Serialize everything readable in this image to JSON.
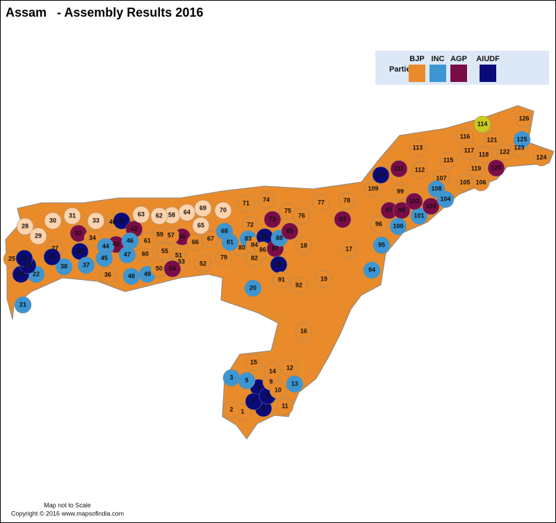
{
  "header": {
    "title": "Assam   - Assembly Results 2016"
  },
  "legend": {
    "label": "Parties",
    "parties": [
      {
        "name": "BJP",
        "color": "#e98b2a"
      },
      {
        "name": "INC",
        "color": "#3d96d2"
      },
      {
        "name": "AGP",
        "color": "#7a0c46"
      },
      {
        "name": "AIUDF",
        "color": "#0a0a78"
      }
    ]
  },
  "constituencies": [
    {
      "label": "1",
      "color": "#e98b2a"
    },
    {
      "label": "2",
      "color": "#e98b2a"
    },
    {
      "label": "3",
      "color": "#3d96d2"
    },
    {
      "label": "4",
      "color": "#0a0a78"
    },
    {
      "label": "5",
      "color": "#3d96d2"
    },
    {
      "label": "6",
      "color": "#0a0a78"
    },
    {
      "label": "7",
      "color": "#0a0a78"
    },
    {
      "label": "8",
      "color": "#0a0a78"
    },
    {
      "label": "9",
      "color": "#e98b2a"
    },
    {
      "label": "10",
      "color": "#e98b2a"
    },
    {
      "label": "11",
      "color": "#e98b2a"
    },
    {
      "label": "12",
      "color": "#e98b2a"
    },
    {
      "label": "13",
      "color": "#3d96d2"
    },
    {
      "label": "14",
      "color": "#e98b2a"
    },
    {
      "label": "15",
      "color": "#e98b2a"
    },
    {
      "label": "16",
      "color": "#e98b2a"
    },
    {
      "label": "17",
      "color": "#e98b2a"
    },
    {
      "label": "18",
      "color": "#e98b2a"
    },
    {
      "label": "19",
      "color": "#e98b2a"
    },
    {
      "label": "20",
      "color": "#3d96d2"
    },
    {
      "label": "21",
      "color": "#3d96d2"
    },
    {
      "label": "22",
      "color": "#3d96d2"
    },
    {
      "label": "23",
      "color": "#0a0a78"
    },
    {
      "label": "24",
      "color": "#0a0a78"
    },
    {
      "label": "25",
      "color": "#e98b2a"
    },
    {
      "label": "26",
      "color": "#0a0a78"
    },
    {
      "label": "27",
      "color": "#e98b2a"
    },
    {
      "label": "28",
      "color": "#fdd3ad"
    },
    {
      "label": "29",
      "color": "#fdd3ad"
    },
    {
      "label": "30",
      "color": "#fdd3ad"
    },
    {
      "label": "31",
      "color": "#fdd3ad"
    },
    {
      "label": "32",
      "color": "#7a0c46"
    },
    {
      "label": "33",
      "color": "#fdd3ad"
    },
    {
      "label": "34",
      "color": "#e98b2a"
    },
    {
      "label": "35",
      "color": "#0a0a78"
    },
    {
      "label": "36",
      "color": "#e98b2a"
    },
    {
      "label": "37",
      "color": "#3d96d2"
    },
    {
      "label": "38",
      "color": "#3d96d2"
    },
    {
      "label": "39",
      "color": "#0a0a78"
    },
    {
      "label": "40",
      "color": "#e98b2a"
    },
    {
      "label": "41",
      "color": "#0a0a78"
    },
    {
      "label": "42",
      "color": "#7a0c46"
    },
    {
      "label": "43",
      "color": "#7a0c46"
    },
    {
      "label": "44",
      "color": "#3d96d2"
    },
    {
      "label": "45",
      "color": "#3d96d2"
    },
    {
      "label": "46",
      "color": "#3d96d2"
    },
    {
      "label": "47",
      "color": "#3d96d2"
    },
    {
      "label": "48",
      "color": "#3d96d2"
    },
    {
      "label": "49",
      "color": "#3d96d2"
    },
    {
      "label": "50",
      "color": "#e98b2a"
    },
    {
      "label": "51",
      "color": "#e98b2a"
    },
    {
      "label": "52",
      "color": "#e98b2a"
    },
    {
      "label": "53",
      "color": "#e98b2a"
    },
    {
      "label": "54",
      "color": "#7a0c46"
    },
    {
      "label": "55",
      "color": "#e98b2a"
    },
    {
      "label": "56",
      "color": "#7a0c46"
    },
    {
      "label": "57",
      "color": "#e98b2a"
    },
    {
      "label": "58",
      "color": "#fdd3ad"
    },
    {
      "label": "59",
      "color": "#e98b2a"
    },
    {
      "label": "60",
      "color": "#e98b2a"
    },
    {
      "label": "61",
      "color": "#e98b2a"
    },
    {
      "label": "62",
      "color": "#fdd3ad"
    },
    {
      "label": "63",
      "color": "#fdd3ad"
    },
    {
      "label": "64",
      "color": "#fdd3ad"
    },
    {
      "label": "65",
      "color": "#fdd3ad"
    },
    {
      "label": "66",
      "color": "#e98b2a"
    },
    {
      "label": "67",
      "color": "#e98b2a"
    },
    {
      "label": "68",
      "color": "#3d96d2"
    },
    {
      "label": "69",
      "color": "#fdd3ad"
    },
    {
      "label": "70",
      "color": "#fdd3ad"
    },
    {
      "label": "71",
      "color": "#e98b2a"
    },
    {
      "label": "72",
      "color": "#e98b2a"
    },
    {
      "label": "73",
      "color": "#7a0c46"
    },
    {
      "label": "74",
      "color": "#e98b2a"
    },
    {
      "label": "75",
      "color": "#e98b2a"
    },
    {
      "label": "76",
      "color": "#e98b2a"
    },
    {
      "label": "77",
      "color": "#e98b2a"
    },
    {
      "label": "78",
      "color": "#e98b2a"
    },
    {
      "label": "79",
      "color": "#e98b2a"
    },
    {
      "label": "80",
      "color": "#e98b2a"
    },
    {
      "label": "81",
      "color": "#3d96d2"
    },
    {
      "label": "82",
      "color": "#e98b2a"
    },
    {
      "label": "83",
      "color": "#3d96d2"
    },
    {
      "label": "84",
      "color": "#e98b2a"
    },
    {
      "label": "85",
      "color": "#0a0a78"
    },
    {
      "label": "86",
      "color": "#e98b2a"
    },
    {
      "label": "87",
      "color": "#7a0c46"
    },
    {
      "label": "88",
      "color": "#3d96d2"
    },
    {
      "label": "89",
      "color": "#7a0c46"
    },
    {
      "label": "90",
      "color": "#0a0a78"
    },
    {
      "label": "91",
      "color": "#e98b2a"
    },
    {
      "label": "92",
      "color": "#e98b2a"
    },
    {
      "label": "93",
      "color": "#7a0c46"
    },
    {
      "label": "94",
      "color": "#3d96d2"
    },
    {
      "label": "95",
      "color": "#3d96d2"
    },
    {
      "label": "96",
      "color": "#e98b2a"
    },
    {
      "label": "97",
      "color": "#7a0c46"
    },
    {
      "label": "98",
      "color": "#7a0c46"
    },
    {
      "label": "99",
      "color": "#e98b2a"
    },
    {
      "label": "100",
      "color": "#3d96d2"
    },
    {
      "label": "101",
      "color": "#3d96d2"
    },
    {
      "label": "102",
      "color": "#7a0c46"
    },
    {
      "label": "103",
      "color": "#7a0c46"
    },
    {
      "label": "104",
      "color": "#3d96d2"
    },
    {
      "label": "105",
      "color": "#e98b2a"
    },
    {
      "label": "106",
      "color": "#e98b2a"
    },
    {
      "label": "107",
      "color": "#e98b2a"
    },
    {
      "label": "108",
      "color": "#3d96d2"
    },
    {
      "label": "109",
      "color": "#e98b2a"
    },
    {
      "label": "110",
      "color": "#0a0a78"
    },
    {
      "label": "111",
      "color": "#7a0c46"
    },
    {
      "label": "112",
      "color": "#e98b2a"
    },
    {
      "label": "113",
      "color": "#e98b2a"
    },
    {
      "label": "114",
      "color": "#c9cc1c"
    },
    {
      "label": "115",
      "color": "#e98b2a"
    },
    {
      "label": "116",
      "color": "#e98b2a"
    },
    {
      "label": "117",
      "color": "#e98b2a"
    },
    {
      "label": "118",
      "color": "#e98b2a"
    },
    {
      "label": "119",
      "color": "#e98b2a"
    },
    {
      "label": "120",
      "color": "#7a0c46"
    },
    {
      "label": "121",
      "color": "#e98b2a"
    },
    {
      "label": "122",
      "color": "#e98b2a"
    },
    {
      "label": "123",
      "color": "#e98b2a"
    },
    {
      "label": "124",
      "color": "#e98b2a"
    },
    {
      "label": "125",
      "color": "#3d96d2"
    },
    {
      "label": "126",
      "color": "#e98b2a"
    }
  ],
  "footer": {
    "note": "Map not to Scale",
    "copyright": "Copyright © 2016 www.mapsofindia.com"
  }
}
